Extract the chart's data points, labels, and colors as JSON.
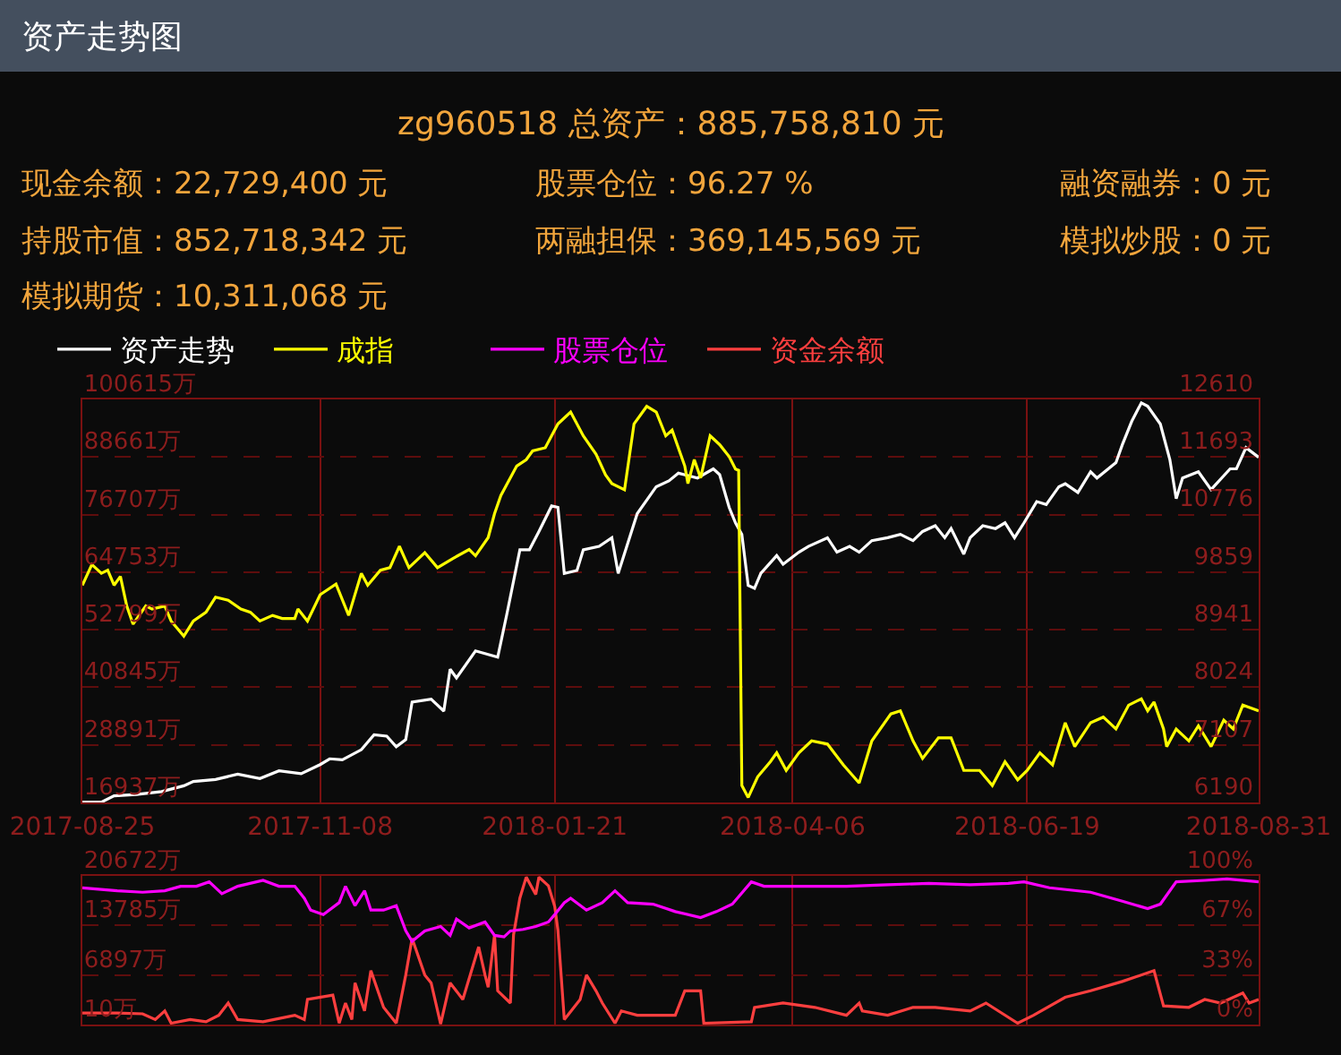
{
  "chart_data": [
    {
      "type": "line",
      "title": "资产走势图",
      "subtitle": "zg960518 总资产：885,758,810 元",
      "annotations": [
        "现金余额：22,729,400 元",
        "股票仓位：96.27 %",
        "融资融券：0 元",
        "持股市值：852,718,342 元",
        "两融担保：369,145,569 元",
        "模拟炒股：0 元",
        "模拟期货：10,311,068 元"
      ],
      "legend": "top",
      "grid": true,
      "xlim": [
        "2017-08-25",
        "2018-08-31"
      ],
      "xticks": [
        "2017-08-25",
        "2017-11-08",
        "2018-01-21",
        "2018-04-06",
        "2018-06-19",
        "2018-08-31"
      ],
      "ylim": [
        16937,
        100615
      ],
      "yticks": [
        {
          "value": 16937,
          "label": "16937万"
        },
        {
          "value": 28891,
          "label": "28891万"
        },
        {
          "value": 40845,
          "label": "40845万"
        },
        {
          "value": 52799,
          "label": "52799万"
        },
        {
          "value": 64753,
          "label": "64753万"
        },
        {
          "value": 76707,
          "label": "76707万"
        },
        {
          "value": 88661,
          "label": "88661万"
        },
        {
          "value": 100615,
          "label": "100615万"
        }
      ],
      "y2lim": [
        6190,
        12610
      ],
      "y2ticks": [
        6190,
        7107,
        8024,
        8941,
        9859,
        10776,
        11693,
        12610
      ],
      "series": [
        {
          "name": "资产走势",
          "color": "#ffffff",
          "x": [
            "2017-08-25",
            "2017-08-31",
            "2017-09-04",
            "2017-09-11",
            "2017-09-19",
            "2017-09-26",
            "2017-09-29",
            "2017-10-06",
            "2017-10-13",
            "2017-10-20",
            "2017-10-26",
            "2017-11-02",
            "2017-11-08",
            "2017-11-11",
            "2017-11-15",
            "2017-11-21",
            "2017-11-25",
            "2017-11-29",
            "2017-12-02",
            "2017-12-05",
            "2017-12-07",
            "2017-12-13",
            "2017-12-17",
            "2017-12-19",
            "2017-12-21",
            "2017-12-27",
            "2018-01-03",
            "2018-01-04",
            "2018-01-06",
            "2018-01-10",
            "2018-01-13",
            "2018-01-16",
            "2018-01-20",
            "2018-01-22",
            "2018-01-24",
            "2018-01-28",
            "2018-01-30",
            "2018-02-04",
            "2018-02-08",
            "2018-02-10",
            "2018-02-16",
            "2018-02-22",
            "2018-02-26",
            "2018-03-01",
            "2018-03-07",
            "2018-03-12",
            "2018-03-14",
            "2018-03-17",
            "2018-03-19",
            "2018-03-21",
            "2018-03-23",
            "2018-03-25",
            "2018-03-27",
            "2018-04-01",
            "2018-04-03",
            "2018-04-08",
            "2018-04-11",
            "2018-04-17",
            "2018-04-20",
            "2018-04-24",
            "2018-04-27",
            "2018-05-01",
            "2018-05-06",
            "2018-05-10",
            "2018-05-14",
            "2018-05-17",
            "2018-05-21",
            "2018-05-24",
            "2018-05-26",
            "2018-05-30",
            "2018-06-01",
            "2018-06-05",
            "2018-06-09",
            "2018-06-12",
            "2018-06-15",
            "2018-06-18",
            "2018-06-22",
            "2018-06-25",
            "2018-06-29",
            "2018-07-01",
            "2018-07-05",
            "2018-07-09",
            "2018-07-11",
            "2018-07-17",
            "2018-07-19",
            "2018-07-22",
            "2018-07-25",
            "2018-07-27",
            "2018-07-31",
            "2018-08-03",
            "2018-08-05",
            "2018-08-07",
            "2018-08-12",
            "2018-08-16",
            "2018-08-22",
            "2018-08-24",
            "2018-08-27",
            "2018-08-31"
          ],
          "values": [
            17000,
            17000,
            18300,
            18600,
            19200,
            20400,
            21300,
            21700,
            22800,
            21900,
            23500,
            22900,
            24800,
            26000,
            25800,
            27900,
            31000,
            30700,
            28500,
            30000,
            37800,
            38400,
            35900,
            44600,
            42800,
            48400,
            47100,
            50200,
            56400,
            69400,
            69400,
            73200,
            78500,
            78200,
            64500,
            65100,
            69400,
            70100,
            71900,
            64500,
            76900,
            82500,
            83700,
            85300,
            84300,
            86200,
            85000,
            78200,
            75000,
            72600,
            62000,
            61400,
            64500,
            68200,
            66400,
            68900,
            70100,
            71900,
            68900,
            70100,
            68900,
            71300,
            71900,
            72600,
            71300,
            73200,
            74400,
            71900,
            73800,
            68500,
            71900,
            74400,
            73800,
            75000,
            71900,
            75000,
            79400,
            78800,
            82500,
            83100,
            81300,
            85600,
            84300,
            87500,
            91200,
            96100,
            99900,
            99200,
            95500,
            88100,
            80000,
            84300,
            85600,
            81900,
            86200,
            86200,
            90600,
            88600
          ]
        },
        {
          "name": "成指",
          "color": "#ffff00",
          "axis": "y2",
          "x": [
            "2017-08-25",
            "2017-08-28",
            "2017-08-31",
            "2017-09-02",
            "2017-09-04",
            "2017-09-06",
            "2017-09-08",
            "2017-09-10",
            "2017-09-14",
            "2017-09-16",
            "2017-09-20",
            "2017-09-22",
            "2017-09-26",
            "2017-09-29",
            "2017-10-03",
            "2017-10-06",
            "2017-10-10",
            "2017-10-14",
            "2017-10-17",
            "2017-10-20",
            "2017-10-24",
            "2017-10-27",
            "2017-10-31",
            "2017-11-01",
            "2017-11-04",
            "2017-11-08",
            "2017-11-13",
            "2017-11-17",
            "2017-11-21",
            "2017-11-23",
            "2017-11-27",
            "2017-11-30",
            "2017-12-03",
            "2017-12-06",
            "2017-12-11",
            "2017-12-15",
            "2017-12-20",
            "2017-12-25",
            "2017-12-27",
            "2017-12-31",
            "2018-01-02",
            "2018-01-04",
            "2018-01-09",
            "2018-01-12",
            "2018-01-14",
            "2018-01-18",
            "2018-01-22",
            "2018-01-26",
            "2018-01-30",
            "2018-02-03",
            "2018-02-06",
            "2018-02-08",
            "2018-02-12",
            "2018-02-15",
            "2018-02-19",
            "2018-02-22",
            "2018-02-25",
            "2018-02-27",
            "2018-03-03",
            "2018-03-04",
            "2018-03-06",
            "2018-03-08",
            "2018-03-11",
            "2018-03-14",
            "2018-03-17",
            "2018-03-19",
            "2018-03-20",
            "2018-03-21",
            "2018-03-23",
            "2018-03-26",
            "2018-03-30",
            "2018-04-01",
            "2018-04-04",
            "2018-04-08",
            "2018-04-12",
            "2018-04-17",
            "2018-04-22",
            "2018-04-27",
            "2018-05-01",
            "2018-05-07",
            "2018-05-10",
            "2018-05-14",
            "2018-05-17",
            "2018-05-22",
            "2018-05-26",
            "2018-05-30",
            "2018-06-04",
            "2018-06-08",
            "2018-06-12",
            "2018-06-16",
            "2018-06-19",
            "2018-06-23",
            "2018-06-27",
            "2018-07-01",
            "2018-07-04",
            "2018-07-09",
            "2018-07-13",
            "2018-07-17",
            "2018-07-21",
            "2018-07-25",
            "2018-07-27",
            "2018-07-29",
            "2018-08-01",
            "2018-08-02",
            "2018-08-05",
            "2018-08-09",
            "2018-08-12",
            "2018-08-16",
            "2018-08-20",
            "2018-08-23",
            "2018-08-26",
            "2018-08-31"
          ],
          "values": [
            9650,
            9980,
            9840,
            9890,
            9650,
            9790,
            9320,
            9030,
            9320,
            9270,
            9320,
            9080,
            8840,
            9080,
            9220,
            9460,
            9410,
            9270,
            9220,
            9080,
            9170,
            9120,
            9120,
            9270,
            9080,
            9500,
            9670,
            9170,
            9840,
            9650,
            9890,
            9930,
            10270,
            9930,
            10170,
            9930,
            10080,
            10220,
            10120,
            10410,
            10790,
            11080,
            11550,
            11650,
            11790,
            11840,
            12220,
            12410,
            12030,
            11740,
            11410,
            11270,
            11170,
            12220,
            12500,
            12410,
            12030,
            12120,
            11550,
            11270,
            11650,
            11360,
            12030,
            11890,
            11700,
            11500,
            11480,
            6460,
            6270,
            6600,
            6840,
            6980,
            6700,
            6980,
            7170,
            7120,
            6790,
            6500,
            7170,
            7600,
            7650,
            7170,
            6890,
            7220,
            7220,
            6700,
            6700,
            6460,
            6840,
            6550,
            6700,
            6980,
            6790,
            7460,
            7080,
            7460,
            7550,
            7360,
            7740,
            7840,
            7650,
            7790,
            7360,
            7080,
            7360,
            7170,
            7410,
            7080,
            7500,
            7360,
            7740,
            7650
          ]
        }
      ]
    },
    {
      "type": "line",
      "legend": "top",
      "grid": true,
      "tick_labels": "y",
      "xlim": [
        "2017-08-25",
        "2018-08-31"
      ],
      "xticks": [
        "2017-08-25",
        "2017-11-08",
        "2018-01-21",
        "2018-04-06",
        "2018-06-19",
        "2018-08-31"
      ],
      "ylim": [
        10,
        20672
      ],
      "yticks": [
        {
          "value": 10,
          "label": "10万"
        },
        {
          "value": 6897,
          "label": "6897万"
        },
        {
          "value": 13785,
          "label": "13785万"
        },
        {
          "value": 20672,
          "label": "20672万"
        }
      ],
      "y2lim": [
        0,
        100
      ],
      "y2ticks": [
        {
          "value": 0,
          "label": "0%"
        },
        {
          "value": 33,
          "label": "33%"
        },
        {
          "value": 67,
          "label": "67%"
        },
        {
          "value": 100,
          "label": "100%"
        }
      ],
      "series": [
        {
          "name": "股票仓位",
          "color": "#ff00ff",
          "axis": "y2",
          "x": [
            "2017-08-25",
            "2017-09-05",
            "2017-09-13",
            "2017-09-20",
            "2017-09-25",
            "2017-09-30",
            "2017-10-04",
            "2017-10-08",
            "2017-10-13",
            "2017-10-21",
            "2017-10-26",
            "2017-10-31",
            "2017-11-03",
            "2017-11-05",
            "2017-11-09",
            "2017-11-14",
            "2017-11-16",
            "2017-11-19",
            "2017-11-22",
            "2017-11-24",
            "2017-11-28",
            "2017-12-02",
            "2017-12-05",
            "2017-12-07",
            "2017-12-11",
            "2017-12-16",
            "2017-12-19",
            "2017-12-21",
            "2017-12-25",
            "2017-12-30",
            "2018-01-02",
            "2018-01-05",
            "2018-01-07",
            "2018-01-11",
            "2018-01-15",
            "2018-01-19",
            "2018-01-21",
            "2018-01-24",
            "2018-01-26",
            "2018-01-31",
            "2018-02-05",
            "2018-02-09",
            "2018-02-13",
            "2018-02-21",
            "2018-02-28",
            "2018-03-08",
            "2018-03-13",
            "2018-03-18",
            "2018-03-24",
            "2018-03-28",
            "2018-04-10",
            "2018-04-23",
            "2018-05-06",
            "2018-05-19",
            "2018-06-01",
            "2018-06-13",
            "2018-06-18",
            "2018-06-26",
            "2018-07-09",
            "2018-07-19",
            "2018-07-27",
            "2018-07-31",
            "2018-08-05",
            "2018-08-14",
            "2018-08-21",
            "2018-08-31"
          ],
          "values": [
            92,
            90,
            89,
            90,
            93,
            93,
            96,
            88,
            93,
            97,
            93,
            93,
            85,
            77,
            74,
            82,
            93,
            80,
            90,
            77,
            77,
            80,
            63,
            56,
            63,
            66,
            60,
            71,
            65,
            69,
            60,
            59,
            63,
            64,
            66,
            69,
            74,
            82,
            85,
            77,
            82,
            90,
            82,
            81,
            76,
            72,
            76,
            81,
            96,
            93,
            93,
            93,
            94,
            95,
            94,
            95,
            96,
            92,
            89,
            83,
            78,
            81,
            96,
            97,
            98,
            96
          ]
        },
        {
          "name": "资金余额",
          "color": "#ff3f3f",
          "x": [
            "2017-08-25",
            "2017-09-05",
            "2017-09-13",
            "2017-09-17",
            "2017-09-20",
            "2017-09-22",
            "2017-09-28",
            "2017-10-03",
            "2017-10-07",
            "2017-10-10",
            "2017-10-13",
            "2017-10-21",
            "2017-10-31",
            "2017-11-03",
            "2017-11-04",
            "2017-11-12",
            "2017-11-14",
            "2017-11-16",
            "2017-11-18",
            "2017-11-19",
            "2017-11-22",
            "2017-11-24",
            "2017-11-28",
            "2017-12-02",
            "2017-12-05",
            "2017-12-07",
            "2017-12-11",
            "2017-12-13",
            "2017-12-16",
            "2017-12-19",
            "2017-12-23",
            "2017-12-28",
            "2017-12-30",
            "2017-12-31",
            "2018-01-02",
            "2018-01-03",
            "2018-01-07",
            "2018-01-08",
            "2018-01-10",
            "2018-01-12",
            "2018-01-15",
            "2018-01-16",
            "2018-01-19",
            "2018-01-21",
            "2018-01-22",
            "2018-01-24",
            "2018-01-29",
            "2018-01-31",
            "2018-02-03",
            "2018-02-05",
            "2018-02-09",
            "2018-02-11",
            "2018-02-16",
            "2018-02-28",
            "2018-03-03",
            "2018-03-08",
            "2018-03-09",
            "2018-03-24",
            "2018-03-25",
            "2018-04-03",
            "2018-04-13",
            "2018-04-23",
            "2018-04-27",
            "2018-04-28",
            "2018-05-06",
            "2018-05-14",
            "2018-05-21",
            "2018-06-01",
            "2018-06-06",
            "2018-06-16",
            "2018-06-21",
            "2018-07-01",
            "2018-07-09",
            "2018-07-19",
            "2018-07-29",
            "2018-08-01",
            "2018-08-09",
            "2018-08-14",
            "2018-08-19",
            "2018-08-26",
            "2018-08-28",
            "2018-08-31"
          ],
          "values": [
            1600,
            1600,
            1500,
            700,
            1900,
            200,
            700,
            400,
            1300,
            3000,
            700,
            400,
            1300,
            700,
            3500,
            4100,
            200,
            3000,
            700,
            5800,
            1900,
            7500,
            2400,
            200,
            6900,
            12000,
            6900,
            5800,
            100,
            5800,
            3500,
            10800,
            6900,
            5200,
            12500,
            4700,
            3000,
            12500,
            17600,
            20500,
            18100,
            20500,
            19300,
            16400,
            13100,
            700,
            3500,
            6900,
            4700,
            3000,
            200,
            1900,
            1300,
            1300,
            4700,
            4700,
            200,
            400,
            2400,
            3000,
            2400,
            1300,
            3000,
            1900,
            1300,
            2400,
            2400,
            1900,
            3000,
            200,
            1300,
            3800,
            4700,
            6000,
            7500,
            2600,
            2400,
            3500,
            3000,
            4400,
            3000,
            3500
          ]
        }
      ]
    }
  ]
}
